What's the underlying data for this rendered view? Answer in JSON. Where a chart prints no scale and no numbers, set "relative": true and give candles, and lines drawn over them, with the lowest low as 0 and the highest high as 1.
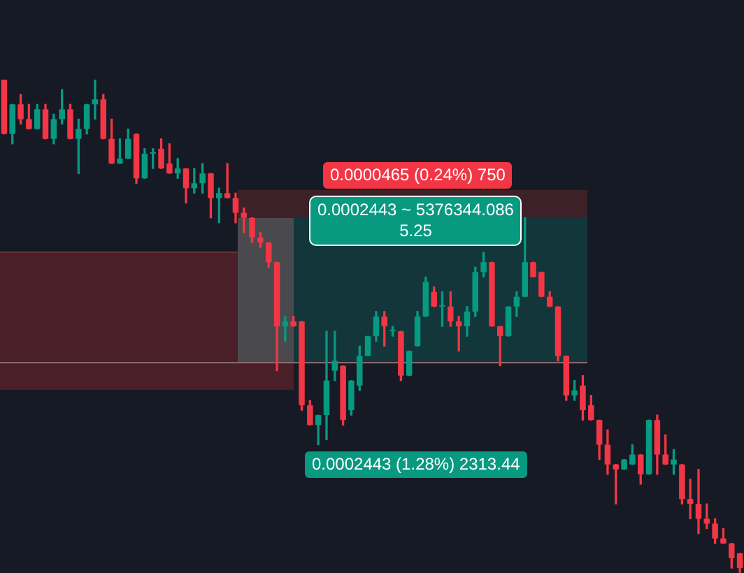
{
  "chart_data": {
    "type": "candlestick",
    "relative": true,
    "categories": [
      null,
      null,
      null,
      null,
      null,
      null,
      null,
      null,
      null,
      null,
      null,
      null,
      null,
      null,
      null,
      null,
      null,
      null,
      null,
      null,
      null,
      null,
      null,
      null,
      null,
      null,
      null,
      null,
      null,
      null,
      null,
      null,
      null,
      null,
      null,
      null,
      null,
      null,
      null,
      null,
      null,
      null,
      null,
      null,
      null,
      null,
      null,
      null,
      null,
      null,
      null,
      null,
      null,
      null,
      null,
      null,
      null,
      null,
      null,
      null,
      null,
      null,
      null,
      null,
      null,
      null,
      null,
      null,
      null,
      null,
      null,
      null,
      null,
      null,
      null,
      null,
      null,
      null,
      null,
      null,
      null,
      null,
      null,
      null,
      null,
      null,
      null,
      null,
      null,
      null
    ],
    "ohlc": [
      [
        1.0,
        1.0,
        0.89,
        0.89
      ],
      [
        0.89,
        0.95,
        0.87,
        0.95
      ],
      [
        0.95,
        0.97,
        0.91,
        0.92
      ],
      [
        0.92,
        0.95,
        0.9,
        0.9
      ],
      [
        0.9,
        0.95,
        0.9,
        0.94
      ],
      [
        0.94,
        0.95,
        0.88,
        0.88
      ],
      [
        0.88,
        0.93,
        0.87,
        0.92
      ],
      [
        0.92,
        0.98,
        0.91,
        0.94
      ],
      [
        0.94,
        0.95,
        0.88,
        0.88
      ],
      [
        0.88,
        0.92,
        0.81,
        0.9
      ],
      [
        0.9,
        0.95,
        0.89,
        0.95
      ],
      [
        0.95,
        1.0,
        0.92,
        0.96
      ],
      [
        0.96,
        0.97,
        0.88,
        0.88
      ],
      [
        0.88,
        0.92,
        0.83,
        0.83
      ],
      [
        0.83,
        0.88,
        0.83,
        0.84
      ],
      [
        0.84,
        0.9,
        0.84,
        0.88
      ],
      [
        0.89,
        0.89,
        0.79,
        0.8
      ],
      [
        0.8,
        0.86,
        0.8,
        0.85
      ],
      [
        0.85,
        0.86,
        0.82,
        0.85
      ],
      [
        0.86,
        0.88,
        0.82,
        0.82
      ],
      [
        0.83,
        0.87,
        0.81,
        0.81
      ],
      [
        0.81,
        0.84,
        0.8,
        0.82
      ],
      [
        0.82,
        0.82,
        0.75,
        0.78
      ],
      [
        0.78,
        0.82,
        0.77,
        0.79
      ],
      [
        0.79,
        0.83,
        0.77,
        0.81
      ],
      [
        0.81,
        0.81,
        0.72,
        0.76
      ],
      [
        0.76,
        0.78,
        0.71,
        0.77
      ],
      [
        0.77,
        0.83,
        0.76,
        0.76
      ],
      [
        0.76,
        0.77,
        0.71,
        0.73
      ],
      [
        0.73,
        0.74,
        0.69,
        0.72
      ],
      [
        0.72,
        0.72,
        0.67,
        0.68
      ],
      [
        0.68,
        0.69,
        0.66,
        0.67
      ],
      [
        0.67,
        0.67,
        0.62,
        0.63
      ],
      [
        0.63,
        0.63,
        0.41,
        0.5
      ],
      [
        0.5,
        0.52,
        0.47,
        0.51
      ],
      [
        0.51,
        0.52,
        0.5,
        0.5
      ],
      [
        0.51,
        0.51,
        0.33,
        0.34
      ],
      [
        0.34,
        0.35,
        0.3,
        0.3
      ],
      [
        0.3,
        0.32,
        0.26,
        0.32
      ],
      [
        0.32,
        0.49,
        0.27,
        0.39
      ],
      [
        0.41,
        0.49,
        0.39,
        0.43
      ],
      [
        0.42,
        0.42,
        0.3,
        0.31
      ],
      [
        0.33,
        0.39,
        0.32,
        0.39
      ],
      [
        0.38,
        0.46,
        0.37,
        0.44
      ],
      [
        0.44,
        0.48,
        0.44,
        0.48
      ],
      [
        0.48,
        0.53,
        0.47,
        0.52
      ],
      [
        0.52,
        0.53,
        0.46,
        0.5
      ],
      [
        0.49,
        0.5,
        0.48,
        0.49
      ],
      [
        0.49,
        0.49,
        0.39,
        0.4
      ],
      [
        0.4,
        0.45,
        0.4,
        0.45
      ],
      [
        0.46,
        0.53,
        0.46,
        0.52
      ],
      [
        0.52,
        0.6,
        0.52,
        0.59
      ],
      [
        0.57,
        0.58,
        0.54,
        0.54
      ],
      [
        0.54,
        0.57,
        0.5,
        0.54
      ],
      [
        0.54,
        0.57,
        0.5,
        0.51
      ],
      [
        0.51,
        0.52,
        0.45,
        0.5
      ],
      [
        0.5,
        0.54,
        0.48,
        0.53
      ],
      [
        0.53,
        0.62,
        0.52,
        0.61
      ],
      [
        0.61,
        0.65,
        0.6,
        0.63
      ],
      [
        0.63,
        0.63,
        0.5,
        0.5
      ],
      [
        0.5,
        0.5,
        0.42,
        0.48
      ],
      [
        0.48,
        0.54,
        0.48,
        0.54
      ],
      [
        0.54,
        0.57,
        0.52,
        0.56
      ],
      [
        0.56,
        0.72,
        0.56,
        0.63
      ],
      [
        0.63,
        0.63,
        0.6,
        0.6
      ],
      [
        0.61,
        0.61,
        0.56,
        0.56
      ],
      [
        0.56,
        0.57,
        0.54,
        0.54
      ],
      [
        0.54,
        0.54,
        0.43,
        0.44
      ],
      [
        0.44,
        0.44,
        0.35,
        0.36
      ],
      [
        0.36,
        0.39,
        0.35,
        0.37
      ],
      [
        0.38,
        0.4,
        0.31,
        0.33
      ],
      [
        0.34,
        0.36,
        0.31,
        0.31
      ],
      [
        0.31,
        0.31,
        0.23,
        0.26
      ],
      [
        0.26,
        0.29,
        0.2,
        0.22
      ],
      [
        0.22,
        0.22,
        0.14,
        0.21
      ],
      [
        0.21,
        0.23,
        0.21,
        0.23
      ],
      [
        0.22,
        0.26,
        0.22,
        0.24
      ],
      [
        0.24,
        0.24,
        0.18,
        0.2
      ],
      [
        0.2,
        0.31,
        0.2,
        0.31
      ],
      [
        0.31,
        0.32,
        0.2,
        0.24
      ],
      [
        0.24,
        0.28,
        0.22,
        0.22
      ],
      [
        0.22,
        0.25,
        0.2,
        0.23
      ],
      [
        0.22,
        0.22,
        0.14,
        0.15
      ],
      [
        0.15,
        0.19,
        0.11,
        0.14
      ],
      [
        0.14,
        0.21,
        0.08,
        0.11
      ],
      [
        0.11,
        0.14,
        0.09,
        0.1
      ],
      [
        0.1,
        0.11,
        0.06,
        0.07
      ],
      [
        0.07,
        0.09,
        0.06,
        0.06
      ],
      [
        0.06,
        0.06,
        0.01,
        0.03
      ],
      [
        0.04,
        0.04,
        0.0,
        0.01
      ]
    ],
    "annotations": [
      "0.0000465 (0.24%) 750",
      "0.0002443 ~ 5376344.086\n5.25",
      "0.0002443 (1.28%) 2313.44"
    ]
  }
}
